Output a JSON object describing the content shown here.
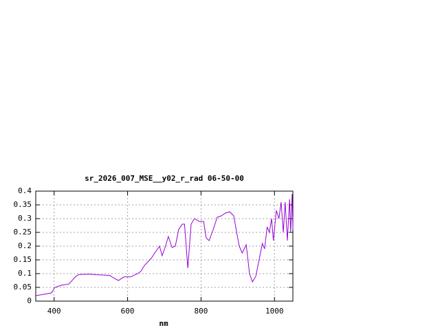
{
  "chart_data": {
    "type": "line",
    "title": "sr_2026_007_MSE__y02_r_rad 06-50-00",
    "x_label": "nm",
    "xlim": [
      350,
      1050
    ],
    "xticks": [
      400,
      600,
      800,
      1000
    ],
    "ylim": [
      0,
      0.4
    ],
    "yticks": [
      0,
      0.05,
      0.1,
      0.15,
      0.2,
      0.25,
      0.3,
      0.35,
      0.4
    ],
    "grid": true,
    "color": "#9400d3",
    "x": [
      350,
      365,
      393,
      402,
      421,
      440,
      459,
      468,
      496,
      515,
      533,
      552,
      561,
      575,
      590,
      608,
      627,
      636,
      646,
      664,
      674,
      687,
      694,
      702,
      711,
      721,
      730,
      739,
      749,
      755,
      764,
      773,
      782,
      795,
      807,
      814,
      822,
      833,
      844,
      855,
      866,
      878,
      889,
      897,
      904,
      912,
      923,
      932,
      940,
      949,
      958,
      967,
      973,
      980,
      986,
      992,
      997,
      1005,
      1012,
      1018,
      1024,
      1029,
      1035,
      1041,
      1044,
      1048,
      1050
    ],
    "values": [
      0.02,
      0.023,
      0.03,
      0.05,
      0.058,
      0.062,
      0.09,
      0.097,
      0.098,
      0.096,
      0.095,
      0.093,
      0.085,
      0.075,
      0.088,
      0.088,
      0.1,
      0.108,
      0.13,
      0.155,
      0.175,
      0.2,
      0.165,
      0.195,
      0.235,
      0.195,
      0.2,
      0.26,
      0.28,
      0.28,
      0.12,
      0.28,
      0.3,
      0.29,
      0.29,
      0.23,
      0.22,
      0.26,
      0.305,
      0.31,
      0.32,
      0.325,
      0.31,
      0.25,
      0.2,
      0.175,
      0.205,
      0.1,
      0.07,
      0.09,
      0.15,
      0.21,
      0.19,
      0.27,
      0.25,
      0.3,
      0.22,
      0.33,
      0.3,
      0.36,
      0.25,
      0.36,
      0.22,
      0.37,
      0.25,
      0.39,
      0.26
    ]
  }
}
